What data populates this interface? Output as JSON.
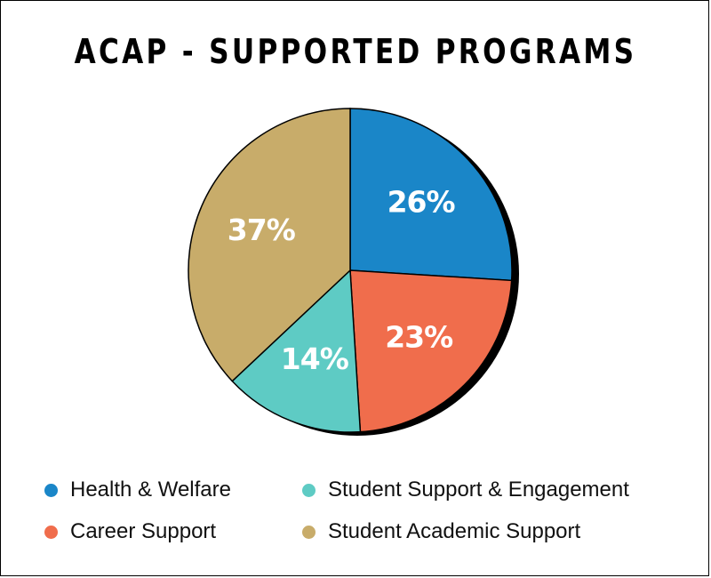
{
  "chart_data": {
    "type": "pie",
    "title": "ACAP - SUPPORTED PROGRAMS",
    "slices": [
      {
        "name": "Health & Welfare",
        "value": 26,
        "label": "26%",
        "color": "#1a86c8"
      },
      {
        "name": "Career Support",
        "value": 23,
        "label": "23%",
        "color": "#f06d4c"
      },
      {
        "name": "Student Support & Engagement",
        "value": 14,
        "label": "14%",
        "color": "#5ecbc4"
      },
      {
        "name": "Student Academic Support",
        "value": 37,
        "label": "37%",
        "color": "#c8ac6a"
      }
    ],
    "legend": {
      "placement": "bottom",
      "columns": [
        [
          "Health & Welfare",
          "Career Support"
        ],
        [
          "Student Support & Engagement",
          "Student Academic Support"
        ]
      ]
    },
    "slice_borders": "#000000",
    "shadow_color": "#000000"
  }
}
